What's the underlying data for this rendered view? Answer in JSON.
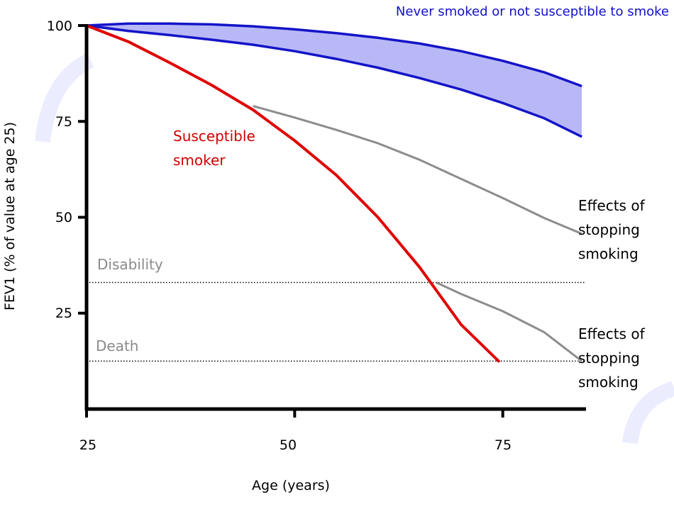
{
  "chart_data": {
    "type": "line",
    "xlabel": "Age (years)",
    "ylabel": "FEV1 (% of value at age 25)",
    "xlim": [
      25,
      85
    ],
    "ylim": [
      0,
      100
    ],
    "x_ticks": [
      "25",
      "50",
      "75"
    ],
    "y_ticks": [
      "25",
      "50",
      "75",
      "100"
    ],
    "grid": false,
    "colors": {
      "band_fill": "#b8b8f6",
      "band_edge": "#1414c8",
      "susceptible": "#e00000",
      "stopping": "#8c8c8c",
      "threshold": "#000000"
    },
    "band": {
      "label": "Never smoked or not susceptible to smoke",
      "upper": [
        [
          25,
          100
        ],
        [
          30,
          100.5
        ],
        [
          35,
          100.5
        ],
        [
          40,
          100.3
        ],
        [
          45,
          99.8
        ],
        [
          50,
          99
        ],
        [
          55,
          98
        ],
        [
          60,
          96.8
        ],
        [
          65,
          95.3
        ],
        [
          70,
          93.3
        ],
        [
          75,
          90.8
        ],
        [
          80,
          87.8
        ],
        [
          84.5,
          84.2
        ]
      ],
      "lower": [
        [
          25,
          100
        ],
        [
          30,
          98.6
        ],
        [
          35,
          97.5
        ],
        [
          40,
          96.3
        ],
        [
          45,
          95
        ],
        [
          50,
          93.3
        ],
        [
          55,
          91.3
        ],
        [
          60,
          89
        ],
        [
          65,
          86.3
        ],
        [
          70,
          83.3
        ],
        [
          75,
          79.8
        ],
        [
          80,
          75.8
        ],
        [
          84.5,
          71
        ]
      ]
    },
    "susceptible_smoker": {
      "label_lines": [
        "Susceptible",
        "smoker"
      ],
      "points": [
        [
          25,
          100
        ],
        [
          30,
          95.8
        ],
        [
          35,
          90.3
        ],
        [
          40,
          84.5
        ],
        [
          45,
          78
        ],
        [
          50,
          70
        ],
        [
          55,
          61
        ],
        [
          60,
          50
        ],
        [
          65,
          37
        ],
        [
          70,
          22
        ],
        [
          74.5,
          12.5
        ]
      ]
    },
    "stopping_at_45": {
      "label_lines": [
        "Effects of",
        "stopping",
        "smoking"
      ],
      "points": [
        [
          45,
          79
        ],
        [
          50,
          76
        ],
        [
          55,
          72.8
        ],
        [
          60,
          69.3
        ],
        [
          65,
          65
        ],
        [
          70,
          60
        ],
        [
          75,
          55
        ],
        [
          80,
          49.8
        ],
        [
          84.5,
          45.7
        ]
      ]
    },
    "stopping_at_67": {
      "label_lines": [
        "Effects of",
        "stopping",
        "smoking"
      ],
      "points": [
        [
          67,
          33
        ],
        [
          70,
          30
        ],
        [
          75,
          25.5
        ],
        [
          80,
          20
        ],
        [
          84.5,
          12.5
        ]
      ]
    },
    "thresholds": [
      {
        "label": "Disability",
        "y": 33
      },
      {
        "label": "Death",
        "y": 12.5
      }
    ]
  }
}
